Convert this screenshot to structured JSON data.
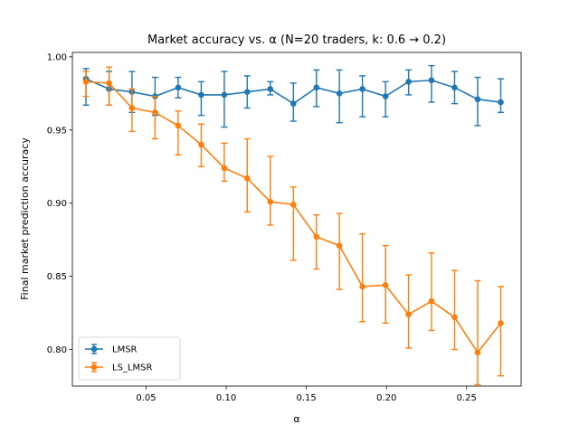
{
  "chart_data": {
    "type": "line",
    "title": "Market accuracy vs. α (N=20 traders, k: 0.6 → 0.2)",
    "xlabel": "α",
    "ylabel": "Final market prediction accuracy",
    "xlim": [
      0.004,
      0.284
    ],
    "ylim": [
      0.775,
      1.003
    ],
    "xticks": [
      0.05,
      0.1,
      0.15,
      0.2,
      0.25
    ],
    "xtick_labels": [
      "0.05",
      "0.10",
      "0.15",
      "0.20",
      "0.25"
    ],
    "yticks": [
      0.8,
      0.85,
      0.9,
      0.95,
      1.0
    ],
    "ytick_labels": [
      "0.80",
      "0.85",
      "0.90",
      "0.95",
      "1.00"
    ],
    "grid": false,
    "legend_position": "bottom-left",
    "x": [
      0.0125,
      0.0269,
      0.0412,
      0.0556,
      0.07,
      0.0844,
      0.0988,
      0.1131,
      0.1275,
      0.1419,
      0.1563,
      0.1706,
      0.185,
      0.1994,
      0.2138,
      0.2281,
      0.2425,
      0.2569,
      0.2713
    ],
    "series": [
      {
        "name": "LMSR",
        "color": "#1f77b4",
        "values": [
          0.985,
          0.978,
          0.976,
          0.973,
          0.979,
          0.974,
          0.974,
          0.976,
          0.978,
          0.968,
          0.979,
          0.975,
          0.978,
          0.973,
          0.983,
          0.984,
          0.979,
          0.971,
          0.969
        ],
        "err_low": [
          0.967,
          0.967,
          0.962,
          0.96,
          0.972,
          0.96,
          0.952,
          0.965,
          0.974,
          0.956,
          0.966,
          0.955,
          0.959,
          0.959,
          0.974,
          0.969,
          0.968,
          0.953,
          0.962
        ],
        "err_high": [
          0.992,
          0.99,
          0.99,
          0.986,
          0.986,
          0.983,
          0.99,
          0.987,
          0.983,
          0.982,
          0.991,
          0.991,
          0.987,
          0.983,
          0.991,
          0.994,
          0.99,
          0.986,
          0.985
        ]
      },
      {
        "name": "LS_LMSR",
        "color": "#ff7f0e",
        "values": [
          0.983,
          0.982,
          0.965,
          0.962,
          0.953,
          0.94,
          0.924,
          0.917,
          0.901,
          0.899,
          0.877,
          0.871,
          0.843,
          0.844,
          0.824,
          0.833,
          0.822,
          0.798,
          0.818
        ],
        "err_low": [
          0.973,
          0.967,
          0.949,
          0.944,
          0.933,
          0.925,
          0.915,
          0.894,
          0.885,
          0.861,
          0.855,
          0.841,
          0.819,
          0.818,
          0.801,
          0.813,
          0.8,
          0.776,
          0.782
        ],
        "err_high": [
          0.99,
          0.993,
          0.978,
          0.973,
          0.963,
          0.954,
          0.941,
          0.944,
          0.932,
          0.911,
          0.892,
          0.893,
          0.879,
          0.871,
          0.851,
          0.866,
          0.854,
          0.847,
          0.843
        ]
      }
    ]
  }
}
